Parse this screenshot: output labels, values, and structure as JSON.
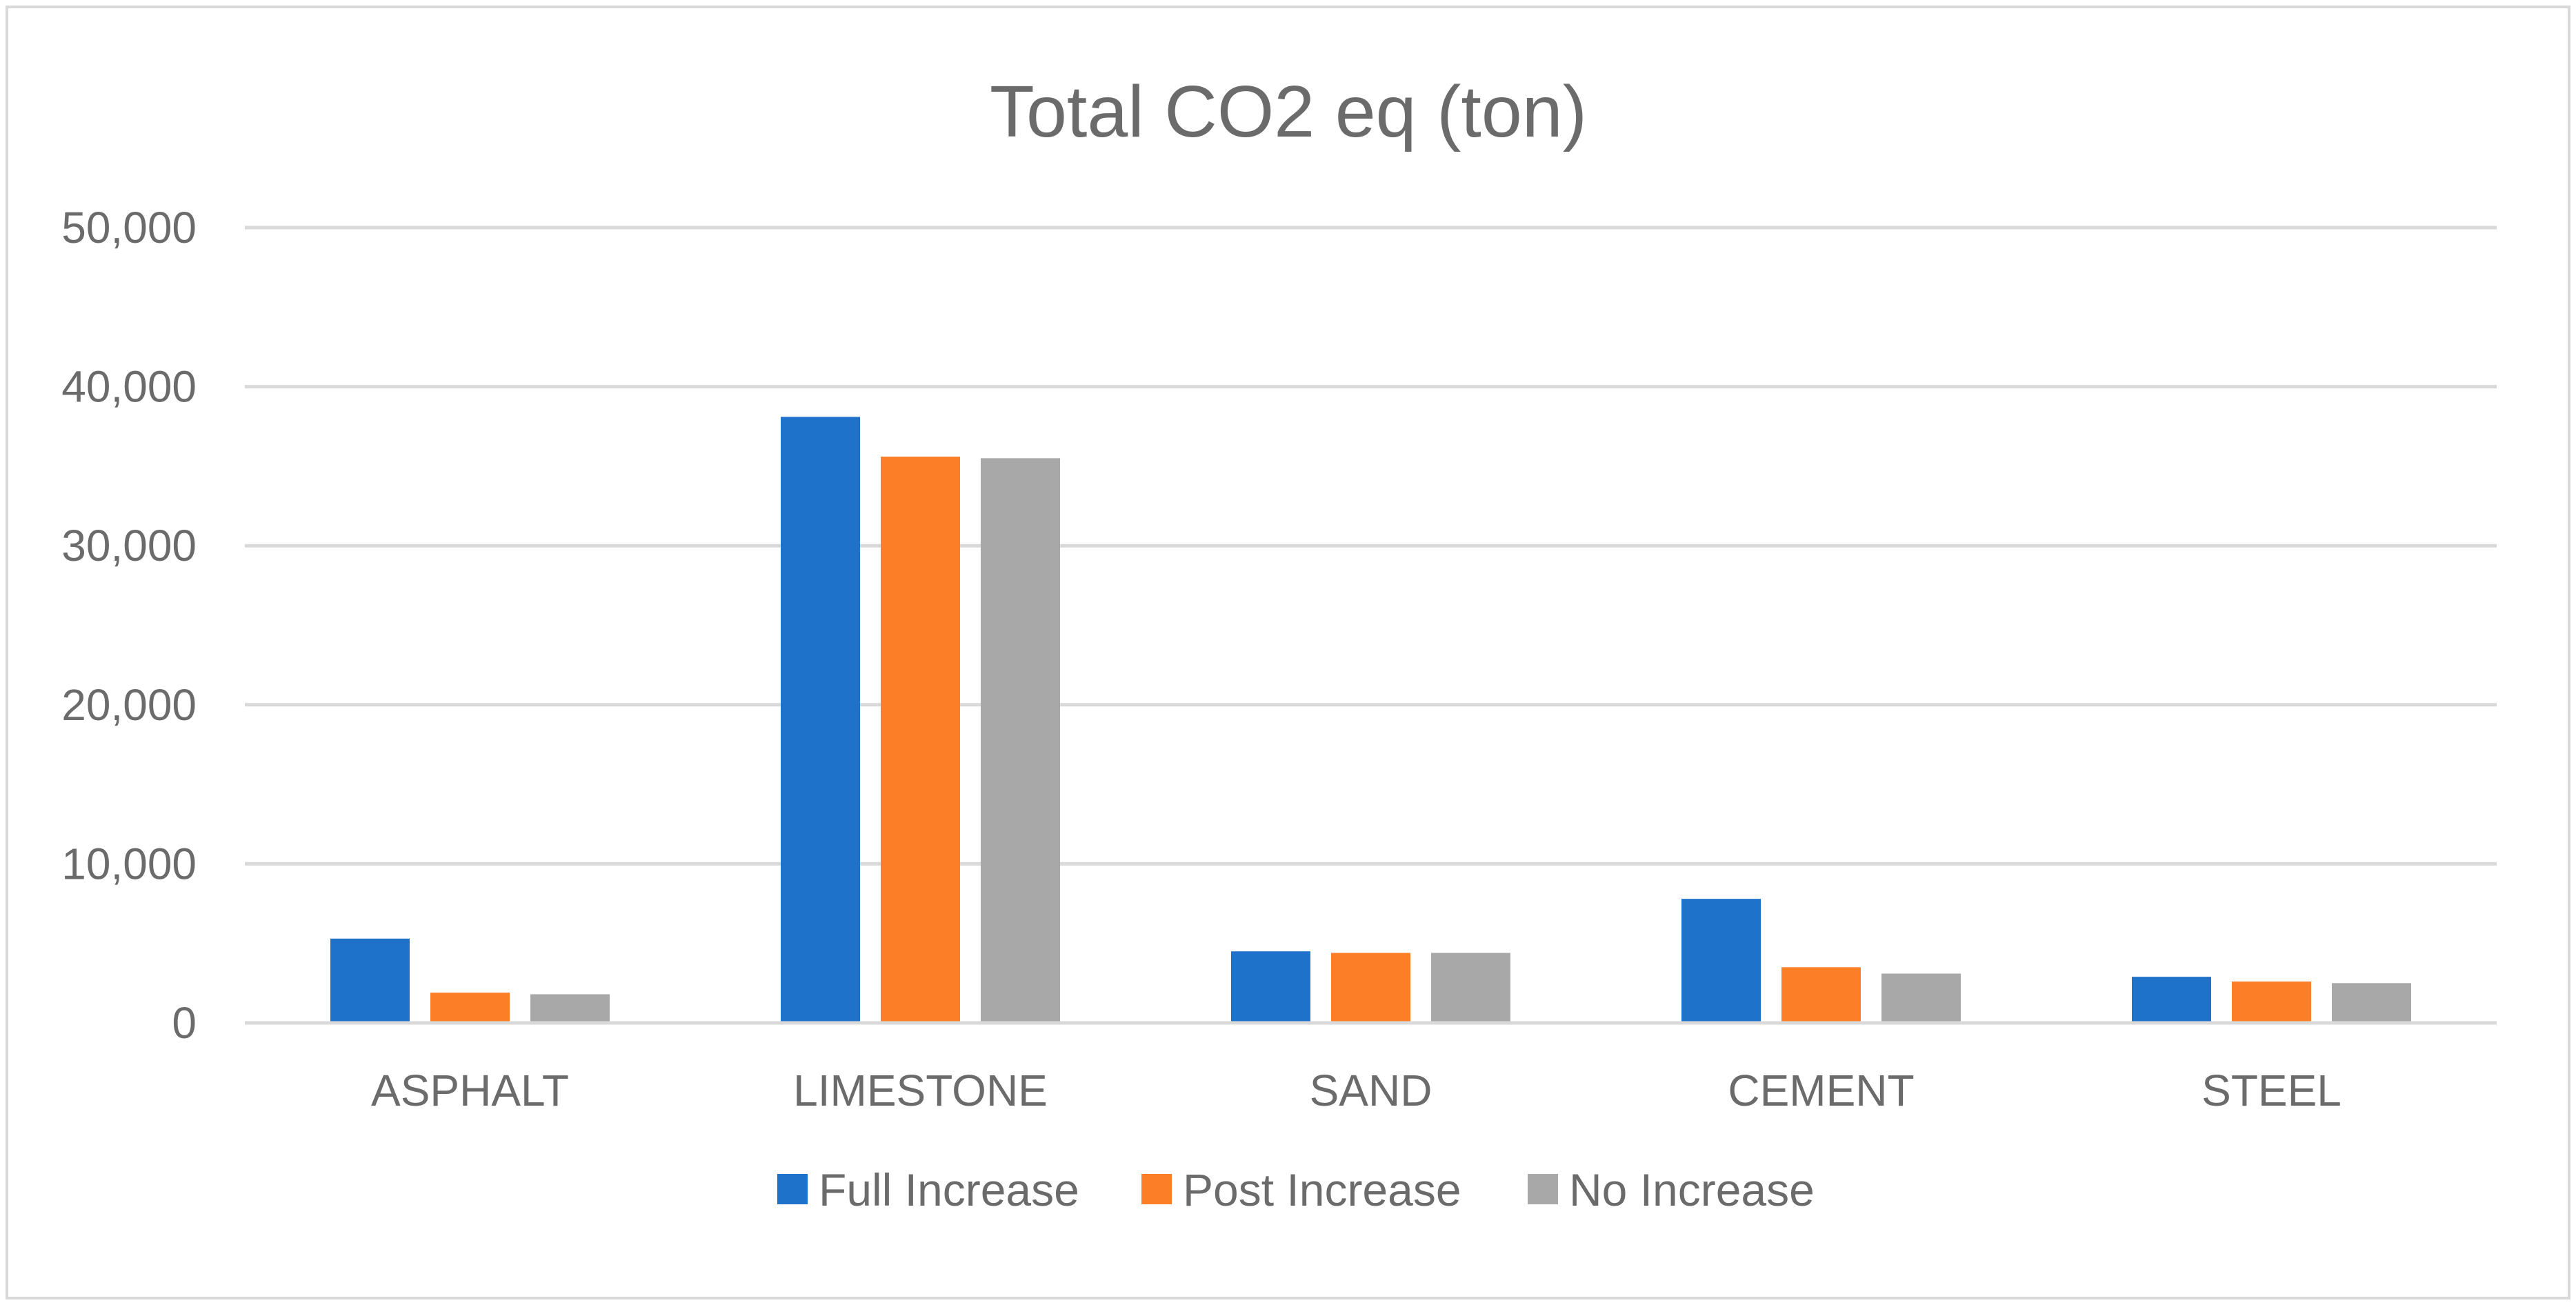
{
  "chart_data": {
    "type": "bar",
    "title": "Total CO2 eq (ton)",
    "xlabel": "",
    "ylabel": "",
    "categories": [
      "ASPHALT",
      "LIMESTONE",
      "SAND",
      "CEMENT",
      "STEEL"
    ],
    "series": [
      {
        "name": "Full Increase",
        "color": "#1f72c9",
        "values": [
          5300,
          38100,
          4500,
          7800,
          2900
        ]
      },
      {
        "name": "Post Increase",
        "color": "#fc7e27",
        "values": [
          1900,
          35600,
          4400,
          3500,
          2600
        ]
      },
      {
        "name": "No Increase",
        "color": "#a8a8a8",
        "values": [
          1800,
          35500,
          4400,
          3100,
          2500
        ]
      }
    ],
    "ylim": [
      0,
      50000
    ],
    "yticks": [
      0,
      10000,
      20000,
      30000,
      40000,
      50000
    ],
    "ytick_labels": [
      "0",
      "10,000",
      "20,000",
      "30,000",
      "40,000",
      "50,000"
    ],
    "grid": true,
    "legend": "bottom-center"
  }
}
